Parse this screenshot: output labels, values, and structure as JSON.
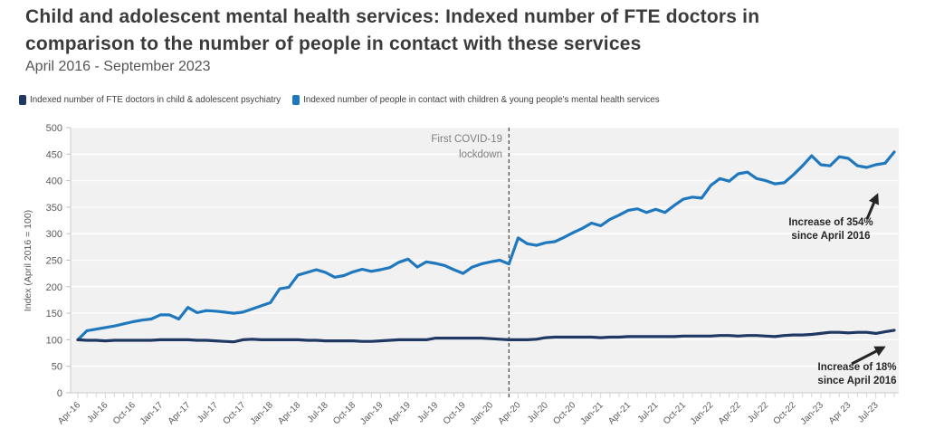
{
  "header": {
    "title_line1": "Child and adolescent mental health services: Indexed number of FTE doctors in",
    "title_line2": "comparison to the number of people in contact with these services",
    "subtitle": "April 2016 - September 2023"
  },
  "legend": {
    "items": [
      {
        "label": "Indexed number of FTE doctors in child & adolescent psychiatry",
        "color": "#1F3864"
      },
      {
        "label": "Indexed number of people in contact with children & young people's mental health services",
        "color": "#1F78BE"
      }
    ]
  },
  "annotations": {
    "lockdown_line1": "First COVID-19",
    "lockdown_line2": "lockdown",
    "increase_blue_line1": "Increase of 354%",
    "increase_blue_line2": "since April 2016",
    "increase_navy_line1": "Increase of 18%",
    "increase_navy_line2": "since April 2016"
  },
  "chart_data": {
    "type": "line",
    "title": "Child and adolescent mental health services: Indexed number of FTE doctors in comparison to the number of people in contact with these services",
    "subtitle": "April 2016 - September 2023",
    "ylabel": "Index (April 2016 = 100)",
    "ylim": [
      0,
      500
    ],
    "ytick_step": 50,
    "grid": "horizontal",
    "legend_position": "top",
    "x_unit": "month",
    "x_start": "Apr-16",
    "x_end": "Sep-23",
    "x_tick_labels": [
      "Apr-16",
      "Jul-16",
      "Oct-16",
      "Jan-17",
      "Apr-17",
      "Jul-17",
      "Oct-17",
      "Jan-18",
      "Apr-18",
      "Jul-18",
      "Oct-18",
      "Jan-19",
      "Apr-19",
      "Jul-19",
      "Oct-19",
      "Jan-20",
      "Apr-20",
      "Jul-20",
      "Oct-20",
      "Jan-21",
      "Apr-21",
      "Jul-21",
      "Oct-21",
      "Jan-22",
      "Apr-22",
      "Jul-22",
      "Oct-22",
      "Jan-23",
      "Apr 23",
      "Jul-23"
    ],
    "covid_line_month_index": 47,
    "covid_line_label": "First COVID-19 lockdown",
    "series": [
      {
        "name": "Indexed number of FTE doctors in child & adolescent psychiatry",
        "color": "#1F3864",
        "final_change_pct": 18,
        "values": [
          100,
          99,
          99,
          98,
          99,
          99,
          99,
          99,
          99,
          100,
          100,
          100,
          100,
          99,
          99,
          98,
          97,
          96,
          100,
          101,
          100,
          100,
          100,
          100,
          100,
          99,
          99,
          98,
          98,
          98,
          98,
          97,
          97,
          98,
          99,
          100,
          100,
          100,
          100,
          103,
          103,
          103,
          103,
          103,
          103,
          102,
          101,
          100,
          100,
          100,
          101,
          104,
          105,
          105,
          105,
          105,
          105,
          104,
          105,
          105,
          106,
          106,
          106,
          106,
          106,
          106,
          107,
          107,
          107,
          107,
          108,
          108,
          107,
          108,
          108,
          107,
          106,
          108,
          109,
          109,
          110,
          112,
          114,
          114,
          113,
          114,
          114,
          112,
          115,
          118
        ]
      },
      {
        "name": "Indexed number of people in contact with children & young people's mental health services",
        "color": "#1F78BE",
        "final_change_pct": 354,
        "values": [
          100,
          117,
          120,
          123,
          126,
          130,
          134,
          137,
          139,
          147,
          147,
          139,
          161,
          151,
          155,
          154,
          152,
          150,
          152,
          158,
          164,
          170,
          196,
          199,
          222,
          227,
          232,
          227,
          218,
          221,
          228,
          233,
          229,
          232,
          236,
          246,
          252,
          237,
          247,
          244,
          240,
          232,
          225,
          237,
          243,
          247,
          250,
          243,
          292,
          281,
          278,
          283,
          285,
          293,
          302,
          310,
          320,
          315,
          327,
          335,
          344,
          347,
          340,
          346,
          340,
          353,
          365,
          369,
          367,
          391,
          404,
          399,
          413,
          416,
          404,
          400,
          394,
          396,
          411,
          428,
          447,
          430,
          428,
          445,
          442,
          428,
          425,
          430,
          433,
          454
        ]
      }
    ]
  }
}
